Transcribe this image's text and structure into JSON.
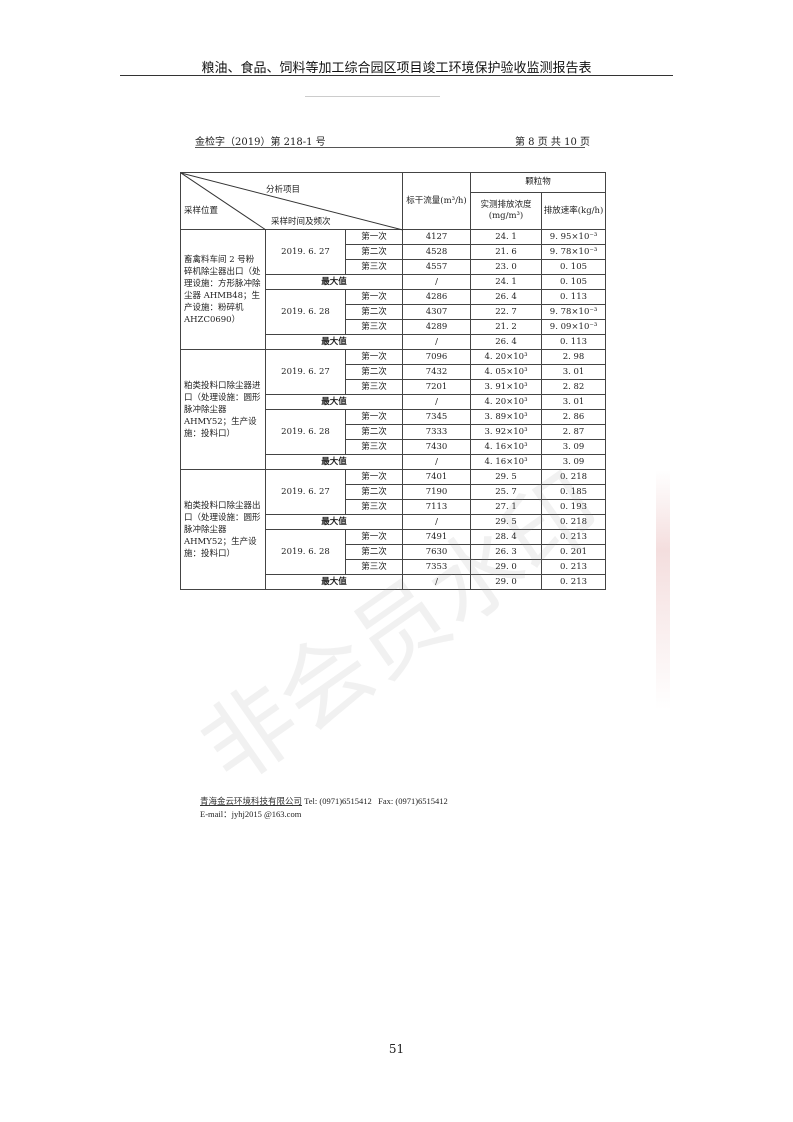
{
  "header": {
    "title": "粮油、食品、饲料等加工综合园区项目竣工环境保护验收监测报告表"
  },
  "doc": {
    "number": "金检字（2019）第 218-1 号",
    "page_info": "第 8 页 共 10 页"
  },
  "table": {
    "headers": {
      "analysis_item": "分析项目",
      "sampling_location": "采样位置",
      "sampling_time": "采样时间及频次",
      "flow": "标干流量(m³/h)",
      "particulate": "颗粒物",
      "concentration": "实测排放浓度(mg/m³)",
      "rate": "排放速率(kg/h)"
    },
    "max_label": "最大值",
    "groups": [
      {
        "location": "畜禽料车间 2 号粉碎机除尘器出口（处理设施：方形脉冲除尘器 AHMB48；生产设施：粉碎机 AHZC0690）",
        "days": [
          {
            "date": "2019. 6. 27",
            "rows": [
              [
                "第一次",
                "4127",
                "24. 1",
                "9. 95×10⁻³"
              ],
              [
                "第二次",
                "4528",
                "21. 6",
                "9. 78×10⁻³"
              ],
              [
                "第三次",
                "4557",
                "23. 0",
                "0. 105"
              ]
            ],
            "max": [
              "/",
              "24. 1",
              "0. 105"
            ]
          },
          {
            "date": "2019. 6. 28",
            "rows": [
              [
                "第一次",
                "4286",
                "26. 4",
                "0. 113"
              ],
              [
                "第二次",
                "4307",
                "22. 7",
                "9. 78×10⁻³"
              ],
              [
                "第三次",
                "4289",
                "21. 2",
                "9. 09×10⁻³"
              ]
            ],
            "max": [
              "/",
              "26. 4",
              "0. 113"
            ]
          }
        ]
      },
      {
        "location": "粕类投料口除尘器进口（处理设施：圆形脉冲除尘器 AHMY52；生产设施：投料口）",
        "days": [
          {
            "date": "2019. 6. 27",
            "rows": [
              [
                "第一次",
                "7096",
                "4. 20×10³",
                "2. 98"
              ],
              [
                "第二次",
                "7432",
                "4. 05×10³",
                "3. 01"
              ],
              [
                "第三次",
                "7201",
                "3. 91×10³",
                "2. 82"
              ]
            ],
            "max": [
              "/",
              "4. 20×10³",
              "3. 01"
            ]
          },
          {
            "date": "2019. 6. 28",
            "rows": [
              [
                "第一次",
                "7345",
                "3. 89×10³",
                "2. 86"
              ],
              [
                "第二次",
                "7333",
                "3. 92×10³",
                "2. 87"
              ],
              [
                "第三次",
                "7430",
                "4. 16×10³",
                "3. 09"
              ]
            ],
            "max": [
              "/",
              "4. 16×10³",
              "3. 09"
            ]
          }
        ]
      },
      {
        "location": "粕类投料口除尘器出口（处理设施：圆形脉冲除尘器 AHMY52；生产设施：投料口）",
        "days": [
          {
            "date": "2019. 6. 27",
            "rows": [
              [
                "第一次",
                "7401",
                "29. 5",
                "0. 218"
              ],
              [
                "第二次",
                "7190",
                "25. 7",
                "0. 185"
              ],
              [
                "第三次",
                "7113",
                "27. 1",
                "0. 193"
              ]
            ],
            "max": [
              "/",
              "29. 5",
              "0. 218"
            ]
          },
          {
            "date": "2019. 6. 28",
            "rows": [
              [
                "第一次",
                "7491",
                "28. 4",
                "0. 213"
              ],
              [
                "第二次",
                "7630",
                "26. 3",
                "0. 201"
              ],
              [
                "第三次",
                "7353",
                "29. 0",
                "0. 213"
              ]
            ],
            "max": [
              "/",
              "29. 0",
              "0. 213"
            ]
          }
        ]
      }
    ]
  },
  "footer": {
    "company": "青海金云环境科技有限公司",
    "tel": "Tel:   (0971)6515412",
    "fax": "Fax:   (0971)6515412",
    "email": "E-mail：jyhj2015 @163.com"
  },
  "page_number": "51",
  "watermark": "非会员水印"
}
